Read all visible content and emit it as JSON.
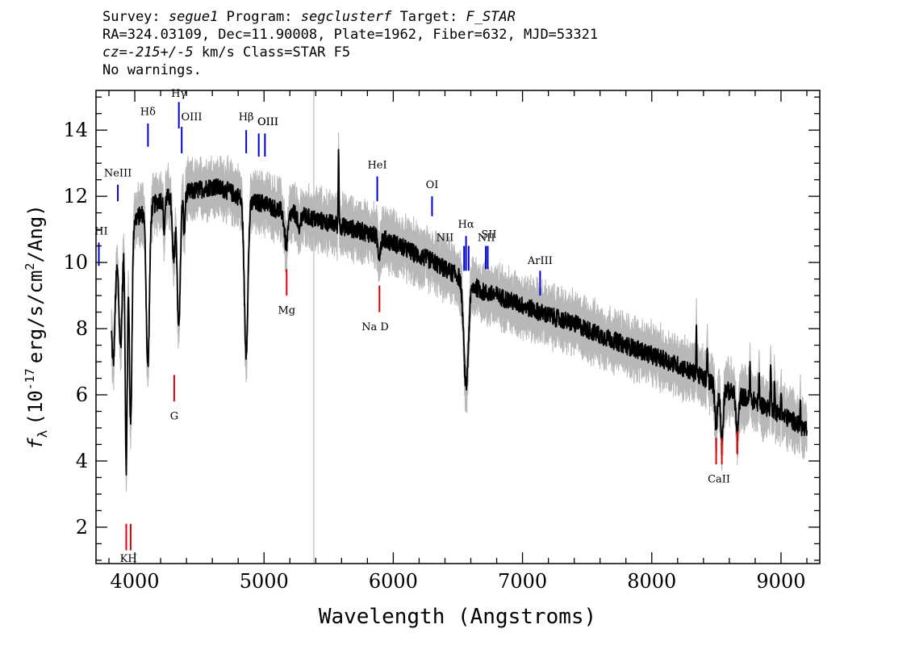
{
  "header": {
    "survey_label": "Survey:",
    "survey": "segue1",
    "program_label": "Program:",
    "program": "segclusterf",
    "target_label": "Target:",
    "target": "F_STAR",
    "line2": "RA=324.03109, Dec=11.90008, Plate=1962, Fiber=632, MJD=53321",
    "cz_label": "cz=",
    "cz_value": "-215+/-5",
    "cz_unit": "km/s Class=STAR F5",
    "warnings": "No warnings."
  },
  "chart_data": {
    "type": "line",
    "title": "",
    "xlabel": "Wavelength (Angstroms)",
    "ylabel_parts": {
      "symbol": "f",
      "subscript": "λ",
      "open": "(10",
      "exp": "-17",
      "units_a": "erg/s/cm",
      "units_exp": "2",
      "units_b": "/Ang)"
    },
    "xlim": [
      3700,
      9300
    ],
    "ylim": [
      0.9,
      15.2
    ],
    "xticks": [
      4000,
      5000,
      6000,
      7000,
      8000,
      9000
    ],
    "xtick_labels": [
      "4000",
      "5000",
      "6000",
      "7000",
      "8000",
      "9000"
    ],
    "yticks": [
      2,
      4,
      6,
      8,
      10,
      12,
      14
    ],
    "ytick_labels": [
      "2",
      "4",
      "6",
      "8",
      "10",
      "12",
      "14"
    ],
    "grid": false,
    "reference_line_x": 5385,
    "continuum": [
      [
        3820,
        9.0
      ],
      [
        3850,
        10.0
      ],
      [
        3900,
        10.6
      ],
      [
        3950,
        11.0
      ],
      [
        4000,
        11.3
      ],
      [
        4100,
        11.6
      ],
      [
        4200,
        11.9
      ],
      [
        4300,
        12.0
      ],
      [
        4400,
        12.1
      ],
      [
        4500,
        12.2
      ],
      [
        4600,
        12.3
      ],
      [
        4700,
        12.2
      ],
      [
        4800,
        12.0
      ],
      [
        4900,
        11.8
      ],
      [
        5000,
        11.8
      ],
      [
        5100,
        11.6
      ],
      [
        5200,
        11.5
      ],
      [
        5300,
        11.4
      ],
      [
        5400,
        11.3
      ],
      [
        5500,
        11.2
      ],
      [
        5600,
        11.1
      ],
      [
        5700,
        11.0
      ],
      [
        5800,
        10.9
      ],
      [
        5900,
        10.75
      ],
      [
        6000,
        10.6
      ],
      [
        6100,
        10.4
      ],
      [
        6200,
        10.2
      ],
      [
        6300,
        10.05
      ],
      [
        6400,
        9.8
      ],
      [
        6500,
        9.6
      ],
      [
        6600,
        9.35
      ],
      [
        6700,
        9.1
      ],
      [
        6800,
        9.0
      ],
      [
        6900,
        8.85
      ],
      [
        7000,
        8.7
      ],
      [
        7200,
        8.4
      ],
      [
        7400,
        8.15
      ],
      [
        7600,
        7.8
      ],
      [
        7800,
        7.5
      ],
      [
        8000,
        7.2
      ],
      [
        8200,
        6.9
      ],
      [
        8400,
        6.5
      ],
      [
        8600,
        6.1
      ],
      [
        8800,
        5.8
      ],
      [
        9000,
        5.4
      ],
      [
        9100,
        5.2
      ],
      [
        9200,
        4.9
      ]
    ],
    "absorption_features": [
      [
        3835,
        2.5,
        12
      ],
      [
        3890,
        3.0,
        12
      ],
      [
        3934,
        7.0,
        8
      ],
      [
        3968,
        6.0,
        10
      ],
      [
        4101,
        4.8,
        12
      ],
      [
        4227,
        1.0,
        6
      ],
      [
        4300,
        2.0,
        10
      ],
      [
        4340,
        4.0,
        12
      ],
      [
        4383,
        1.2,
        6
      ],
      [
        4861,
        4.6,
        14
      ],
      [
        5172,
        1.0,
        14
      ],
      [
        5270,
        0.6,
        8
      ],
      [
        5890,
        0.5,
        10
      ],
      [
        6563,
        3.2,
        18
      ],
      [
        8498,
        1.2,
        10
      ],
      [
        8542,
        1.6,
        10
      ],
      [
        8662,
        1.2,
        10
      ]
    ],
    "spikes": [
      [
        5577,
        2.4
      ],
      [
        8345,
        1.5
      ],
      [
        8430,
        1.0
      ],
      [
        8760,
        1.0
      ],
      [
        8830,
        0.9
      ],
      [
        8920,
        1.6
      ],
      [
        8950,
        1.1
      ],
      [
        9000,
        0.8
      ],
      [
        9150,
        0.7
      ]
    ],
    "emission_lines": [
      {
        "name": "HI",
        "label": "HI",
        "x": 3722,
        "y0": 9.9,
        "y1": 10.6,
        "label_y": 10.85,
        "label_x": 3740,
        "color": "#0000d0"
      },
      {
        "name": "NeIII",
        "label": "NeIII",
        "x": 3869,
        "y0": 11.85,
        "y1": 12.35,
        "label_y": 12.6,
        "label_x": 3869,
        "color": "#0000d0"
      },
      {
        "name": "Hdelta",
        "label": "Hδ",
        "x": 4102,
        "y0": 13.5,
        "y1": 14.2,
        "label_y": 14.45,
        "label_x": 4102,
        "color": "#0000d0"
      },
      {
        "name": "Hgamma",
        "label": "Hγ",
        "x": 4341,
        "y0": 14.05,
        "y1": 14.85,
        "label_y": 15.0,
        "label_x": 4341,
        "color": "#0000d0"
      },
      {
        "name": "OIII-4363",
        "label": "OIII",
        "x": 4363,
        "y0": 13.3,
        "y1": 14.1,
        "label_y": 14.3,
        "label_x": 4440,
        "color": "#0000d0"
      },
      {
        "name": "Hbeta",
        "label": "Hβ",
        "x": 4862,
        "y0": 13.3,
        "y1": 14.0,
        "label_y": 14.3,
        "label_x": 4862,
        "color": "#0000d0"
      },
      {
        "name": "OIII-4959",
        "label": "OIII",
        "x": 4959,
        "y0": 13.2,
        "y1": 13.9,
        "label_y": 14.15,
        "label_x": 5030,
        "color": "#0000d0"
      },
      {
        "name": "OIII-5007",
        "label": "OIII",
        "x": 5007,
        "y0": 13.2,
        "y1": 13.9,
        "label_y": 14.15,
        "label_x": 5030,
        "color": "#0000d0"
      },
      {
        "name": "HeI",
        "label": "HeI",
        "x": 5876,
        "y0": 11.85,
        "y1": 12.6,
        "label_y": 12.85,
        "label_x": 5876,
        "color": "#0000d0"
      },
      {
        "name": "OI",
        "label": "OI",
        "x": 6300,
        "y0": 11.4,
        "y1": 12.0,
        "label_y": 12.25,
        "label_x": 6300,
        "color": "#0000d0"
      },
      {
        "name": "NII-6548",
        "label": "NII",
        "x": 6548,
        "y0": 9.75,
        "y1": 10.5,
        "label_y": 10.65,
        "label_x": 6400,
        "color": "#0000d0"
      },
      {
        "name": "Halpha",
        "label": "Hα",
        "x": 6563,
        "y0": 9.75,
        "y1": 10.8,
        "label_y": 11.05,
        "label_x": 6563,
        "color": "#0000d0"
      },
      {
        "name": "NII-6583",
        "label": "NII",
        "x": 6583,
        "y0": 9.75,
        "y1": 10.5,
        "label_y": 10.65,
        "label_x": 6720,
        "color": "#0000d0"
      },
      {
        "name": "SII-6716",
        "label": "SII",
        "x": 6716,
        "y0": 9.8,
        "y1": 10.5,
        "label_y": 10.75,
        "label_x": 6740,
        "color": "#0000d0"
      },
      {
        "name": "SII-6731",
        "label": "",
        "x": 6731,
        "y0": 9.8,
        "y1": 10.5,
        "label_y": 10.75,
        "label_x": 6740,
        "color": "#0000d0"
      },
      {
        "name": "ArIII",
        "label": "ArIII",
        "x": 7136,
        "y0": 9.0,
        "y1": 9.75,
        "label_y": 9.95,
        "label_x": 7136,
        "color": "#0000d0"
      }
    ],
    "absorption_markers": [
      {
        "name": "K",
        "label": "",
        "x": 3934,
        "y0": 1.3,
        "y1": 2.1,
        "color": "#e00000"
      },
      {
        "name": "H",
        "label": "KH",
        "x": 3968,
        "y0": 1.3,
        "y1": 2.1,
        "label_y": 0.95,
        "label_x": 3951,
        "color": "#e00000"
      },
      {
        "name": "G",
        "label": "G",
        "x": 4305,
        "y0": 5.8,
        "y1": 6.6,
        "label_y": 5.25,
        "label_x": 4305,
        "color": "#e00000"
      },
      {
        "name": "Mg",
        "label": "Mg",
        "x": 5175,
        "y0": 9.0,
        "y1": 9.8,
        "label_y": 8.45,
        "label_x": 5175,
        "color": "#e00000"
      },
      {
        "name": "NaD",
        "label": "Na  D",
        "x": 5893,
        "y0": 8.5,
        "y1": 9.3,
        "label_y": 7.95,
        "label_x": 5860,
        "color": "#e00000"
      },
      {
        "name": "CaII-8498",
        "label": "",
        "x": 8498,
        "y0": 3.9,
        "y1": 4.7,
        "color": "#e00000"
      },
      {
        "name": "CaII-8542",
        "label": "CaII",
        "x": 8542,
        "y0": 3.9,
        "y1": 4.7,
        "label_y": 3.35,
        "label_x": 8520,
        "color": "#e00000"
      },
      {
        "name": "CaII-8662",
        "label": "",
        "x": 8662,
        "y0": 4.2,
        "y1": 4.9,
        "color": "#e00000"
      }
    ],
    "colors": {
      "flux": "#000000",
      "error": "#b8b8b8",
      "emission": "#0000d0",
      "absorption": "#e00000",
      "reference": "#b8b8b8"
    }
  }
}
